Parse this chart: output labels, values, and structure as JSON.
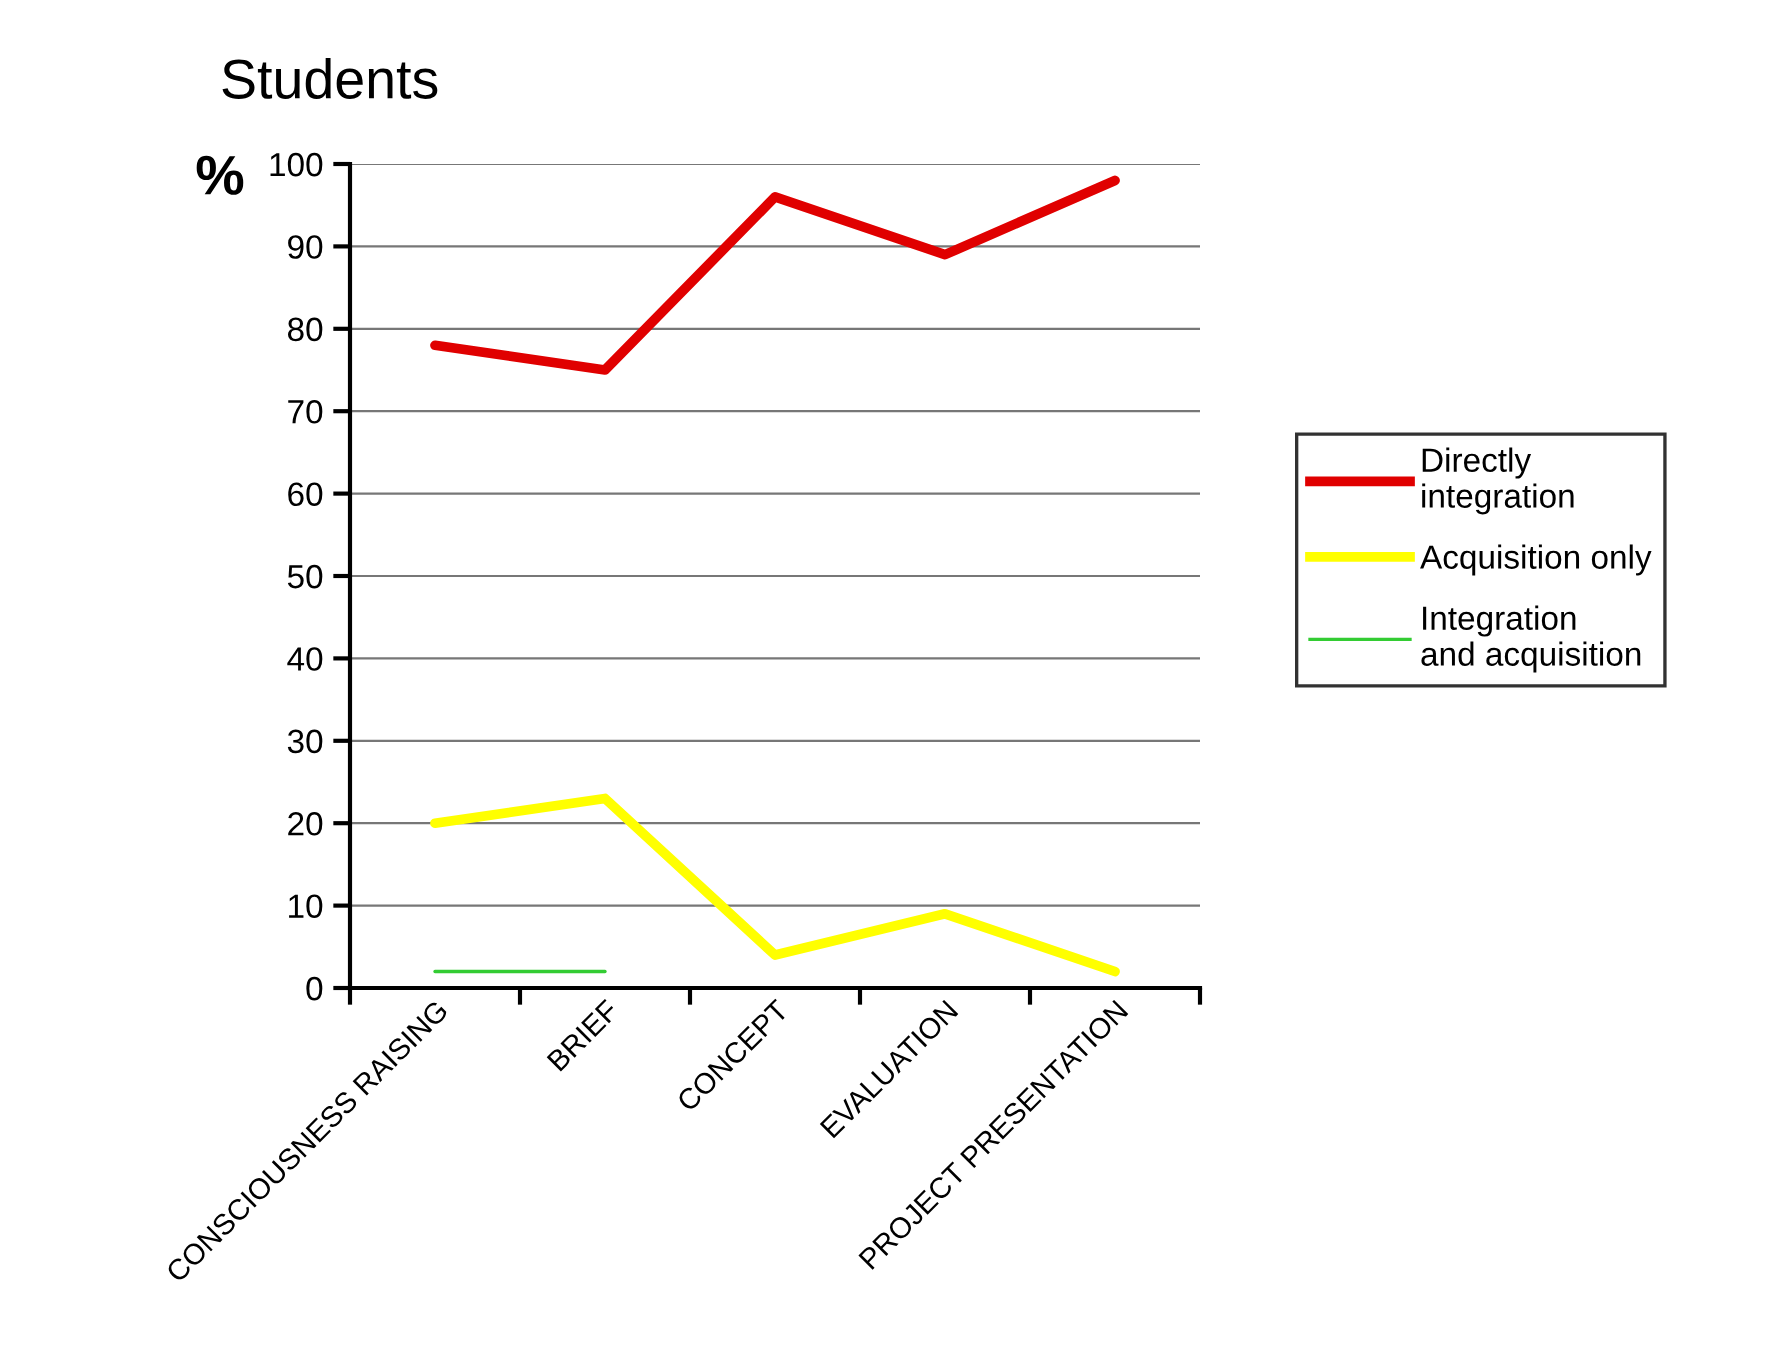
{
  "chart_data": {
    "type": "line",
    "title": "Students",
    "ylabel": "%",
    "categories": [
      "CONSCIOUSNESS RAISING",
      "BRIEF",
      "CONCEPT",
      "EVALUATION",
      "PROJECT PRESENTATION"
    ],
    "series": [
      {
        "name": "Directly integration",
        "color": "#e00000",
        "values": [
          78,
          75,
          96,
          89,
          98
        ]
      },
      {
        "name": "Acquisition only",
        "color": "#ffff00",
        "values": [
          20,
          23,
          4,
          9,
          2
        ]
      },
      {
        "name": "Integration and acquisition",
        "color": "#33cc33",
        "values": [
          2,
          2,
          null,
          null,
          null
        ]
      }
    ],
    "ylim": [
      0,
      100
    ],
    "yticks": [
      0,
      10,
      20,
      30,
      40,
      50,
      60,
      70,
      80,
      90,
      100
    ],
    "grid": "y",
    "legend": "right",
    "marker": "none",
    "line_style": "solid"
  }
}
